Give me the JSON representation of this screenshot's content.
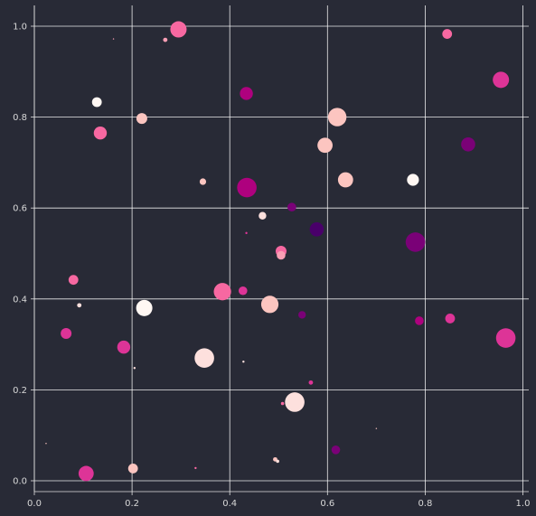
{
  "chart_data": {
    "type": "scatter",
    "title": "",
    "xlabel": "",
    "ylabel": "",
    "xlim": [
      -0.0,
      1.0
    ],
    "ylim": [
      -0.02,
      1.04
    ],
    "grid": true,
    "x_ticks": [
      "0.0",
      "0.2",
      "0.4",
      "0.6",
      "0.8",
      "1.0"
    ],
    "y_ticks": [
      "0.0",
      "0.2",
      "0.4",
      "0.6",
      "0.8",
      "1.0"
    ],
    "colors": {
      "background": "#282a36",
      "grid": "#ffffff",
      "palette": [
        "#fff7f3",
        "#fde0dd",
        "#fcc5c0",
        "#fa9fb5",
        "#f768a1",
        "#dd3497",
        "#ae017e",
        "#7a0177",
        "#49006a"
      ]
    },
    "points": [
      {
        "x": 0.295,
        "y": 0.993,
        "size": 15,
        "color": "#f768a1"
      },
      {
        "x": 0.268,
        "y": 0.97,
        "size": 4,
        "color": "#fa9fb5"
      },
      {
        "x": 0.162,
        "y": 0.972,
        "size": 1,
        "color": "#fa9fb5"
      },
      {
        "x": 0.845,
        "y": 0.983,
        "size": 9,
        "color": "#f768a1"
      },
      {
        "x": 0.955,
        "y": 0.882,
        "size": 15,
        "color": "#dd3497"
      },
      {
        "x": 0.128,
        "y": 0.833,
        "size": 9,
        "color": "#fff7f3"
      },
      {
        "x": 0.434,
        "y": 0.852,
        "size": 12,
        "color": "#ae017e"
      },
      {
        "x": 0.62,
        "y": 0.8,
        "size": 17,
        "color": "#fcc5c0"
      },
      {
        "x": 0.22,
        "y": 0.797,
        "size": 10,
        "color": "#fcc5c0"
      },
      {
        "x": 0.135,
        "y": 0.765,
        "size": 12,
        "color": "#f768a1"
      },
      {
        "x": 0.595,
        "y": 0.738,
        "size": 14,
        "color": "#fcc5c0"
      },
      {
        "x": 0.888,
        "y": 0.74,
        "size": 13,
        "color": "#7a0177"
      },
      {
        "x": 0.637,
        "y": 0.662,
        "size": 14,
        "color": "#fcc5c0"
      },
      {
        "x": 0.775,
        "y": 0.662,
        "size": 11,
        "color": "#fff7f3"
      },
      {
        "x": 0.345,
        "y": 0.658,
        "size": 6,
        "color": "#fcc5c0"
      },
      {
        "x": 0.435,
        "y": 0.645,
        "size": 18,
        "color": "#ae017e"
      },
      {
        "x": 0.527,
        "y": 0.602,
        "size": 8,
        "color": "#7a0177"
      },
      {
        "x": 0.467,
        "y": 0.583,
        "size": 7,
        "color": "#fde0dd"
      },
      {
        "x": 0.578,
        "y": 0.553,
        "size": 13,
        "color": "#49006a"
      },
      {
        "x": 0.434,
        "y": 0.545,
        "size": 2,
        "color": "#dd3497"
      },
      {
        "x": 0.78,
        "y": 0.525,
        "size": 18,
        "color": "#7a0177"
      },
      {
        "x": 0.505,
        "y": 0.505,
        "size": 10,
        "color": "#f768a1"
      },
      {
        "x": 0.505,
        "y": 0.496,
        "size": 8,
        "color": "#fa9fb5"
      },
      {
        "x": 0.08,
        "y": 0.442,
        "size": 9,
        "color": "#f768a1"
      },
      {
        "x": 0.385,
        "y": 0.416,
        "size": 16,
        "color": "#f768a1"
      },
      {
        "x": 0.427,
        "y": 0.418,
        "size": 8,
        "color": "#dd3497"
      },
      {
        "x": 0.482,
        "y": 0.388,
        "size": 16,
        "color": "#fcc5c0"
      },
      {
        "x": 0.092,
        "y": 0.386,
        "size": 4,
        "color": "#fde0dd"
      },
      {
        "x": 0.225,
        "y": 0.38,
        "size": 15,
        "color": "#fff7f3"
      },
      {
        "x": 0.548,
        "y": 0.365,
        "size": 7,
        "color": "#7a0177"
      },
      {
        "x": 0.788,
        "y": 0.352,
        "size": 8,
        "color": "#ae017e"
      },
      {
        "x": 0.851,
        "y": 0.357,
        "size": 9,
        "color": "#dd3497"
      },
      {
        "x": 0.065,
        "y": 0.324,
        "size": 10,
        "color": "#dd3497"
      },
      {
        "x": 0.965,
        "y": 0.314,
        "size": 18,
        "color": "#dd3497"
      },
      {
        "x": 0.183,
        "y": 0.294,
        "size": 12,
        "color": "#dd3497"
      },
      {
        "x": 0.348,
        "y": 0.27,
        "size": 18,
        "color": "#fde0dd"
      },
      {
        "x": 0.428,
        "y": 0.262,
        "size": 2,
        "color": "#fde0dd"
      },
      {
        "x": 0.205,
        "y": 0.248,
        "size": 2,
        "color": "#fde0dd"
      },
      {
        "x": 0.566,
        "y": 0.216,
        "size": 4,
        "color": "#dd3497"
      },
      {
        "x": 0.533,
        "y": 0.173,
        "size": 18,
        "color": "#fde0dd"
      },
      {
        "x": 0.508,
        "y": 0.17,
        "size": 3,
        "color": "#f768a1"
      },
      {
        "x": 0.7,
        "y": 0.115,
        "size": 1,
        "color": "#fcc5c0"
      },
      {
        "x": 0.024,
        "y": 0.082,
        "size": 1,
        "color": "#fcc5c0"
      },
      {
        "x": 0.617,
        "y": 0.068,
        "size": 8,
        "color": "#7a0177"
      },
      {
        "x": 0.493,
        "y": 0.047,
        "size": 4,
        "color": "#fcc5c0"
      },
      {
        "x": 0.498,
        "y": 0.043,
        "size": 3,
        "color": "#fde0dd"
      },
      {
        "x": 0.33,
        "y": 0.028,
        "size": 2,
        "color": "#f768a1"
      },
      {
        "x": 0.202,
        "y": 0.027,
        "size": 9,
        "color": "#fcc5c0"
      },
      {
        "x": 0.106,
        "y": 0.016,
        "size": 14,
        "color": "#dd3497"
      }
    ]
  }
}
